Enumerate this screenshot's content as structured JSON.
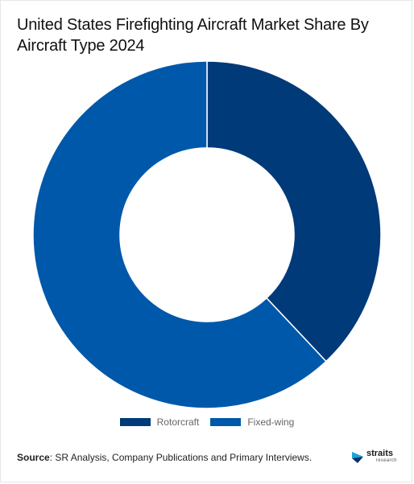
{
  "chart_data": {
    "type": "pie",
    "variant": "donut",
    "title": "United States Firefighting Aircraft Market Share By Aircraft Type 2024",
    "categories": [
      "Rotorcraft",
      "Fixed-wing"
    ],
    "values": [
      38,
      62
    ],
    "colors": [
      "#003a78",
      "#0058aa"
    ],
    "legend": "bottom-center"
  },
  "source": {
    "label": "Source",
    "text": ": SR Analysis, Company Publications and Primary Interviews."
  },
  "logo": {
    "name": "straits",
    "sub": "research",
    "icon": "straits-logo-icon"
  }
}
